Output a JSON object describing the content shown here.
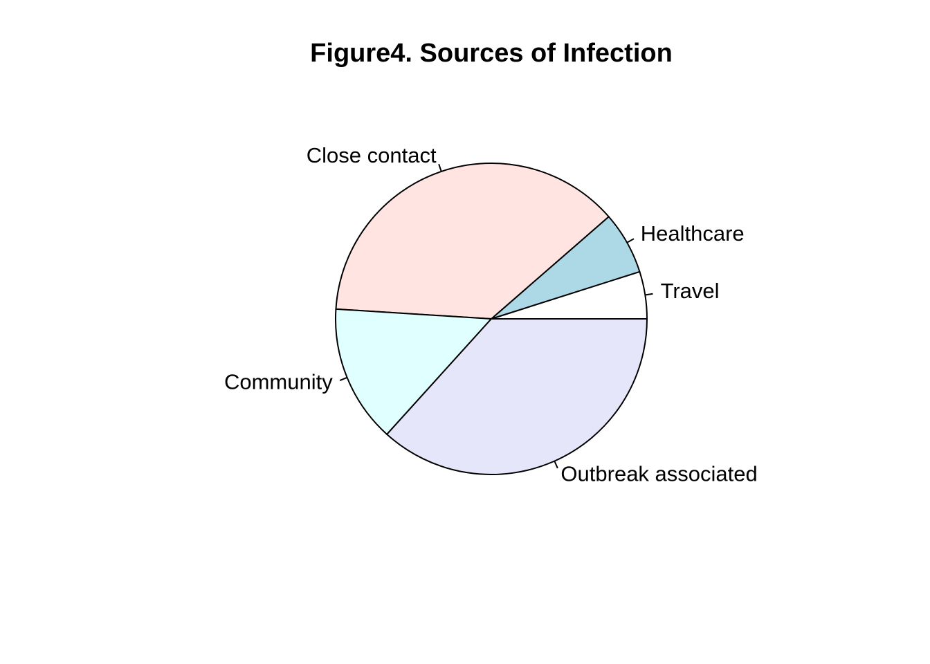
{
  "chart_data": {
    "type": "pie",
    "title": "Figure4. Sources of Infection",
    "slices": [
      {
        "label": "Travel",
        "value": 4.9,
        "color": "#ffffff"
      },
      {
        "label": "Healthcare",
        "value": 6.5,
        "color": "#add8e6"
      },
      {
        "label": "Close contact",
        "value": 37.6,
        "color": "#ffe4e1"
      },
      {
        "label": "Community",
        "value": 14.3,
        "color": "#e0ffff"
      },
      {
        "label": "Outbreak associated",
        "value": 36.7,
        "color": "#e6e6fa"
      }
    ],
    "start": "right",
    "direction": "counterclockwise",
    "legend": "none",
    "grid": false
  }
}
